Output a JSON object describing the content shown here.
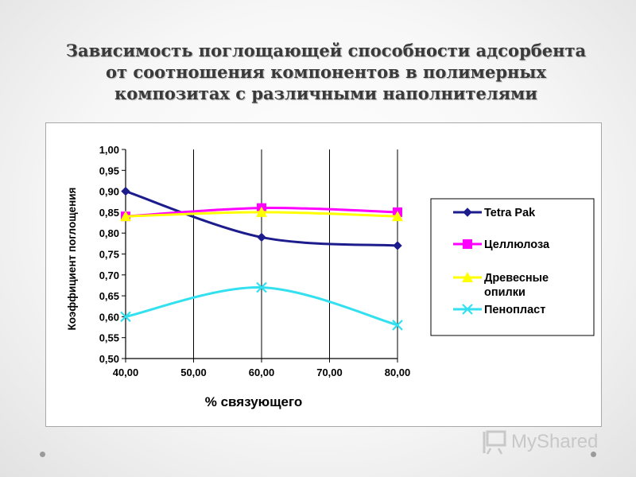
{
  "slide": {
    "title": "Зависимость поглощающей способности адсорбента\nот  соотношения компонентов в полимерных\nкомпозитах  с различными наполнителями",
    "watermark_text": "MyShared",
    "watermark_icon": "presentation-screen-icon"
  },
  "chart_data": {
    "type": "line",
    "title": "",
    "xlabel": "%  связующего",
    "ylabel": "Коэффициент поглощения",
    "x": [
      40,
      50,
      60,
      70,
      80
    ],
    "x_tick_labels": [
      "40,00",
      "50,00",
      "60,00",
      "70,00",
      "80,00"
    ],
    "xlim": [
      40,
      80
    ],
    "ylim": [
      0.5,
      1.0
    ],
    "y_ticks": [
      0.5,
      0.55,
      0.6,
      0.65,
      0.7,
      0.75,
      0.8,
      0.85,
      0.9,
      0.95,
      1.0
    ],
    "y_tick_labels": [
      "0,50",
      "0,55",
      "0,60",
      "0,65",
      "0,70",
      "0,75",
      "0,80",
      "0,85",
      "0,90",
      "0,95",
      "1,00"
    ],
    "grid": "vertical",
    "legend_position": "right",
    "series": [
      {
        "name": "Tetra Pak",
        "x": [
          40,
          60,
          80
        ],
        "values": [
          0.9,
          0.79,
          0.77
        ],
        "color": "#1c1c8c",
        "marker": "diamond"
      },
      {
        "name": "Целлюлоза",
        "x": [
          40,
          60,
          80
        ],
        "values": [
          0.84,
          0.86,
          0.85
        ],
        "color": "#ff00ff",
        "marker": "square"
      },
      {
        "name": "Древесные опилки",
        "x": [
          40,
          60,
          80
        ],
        "values": [
          0.84,
          0.85,
          0.84
        ],
        "color": "#ffff00",
        "marker": "triangle"
      },
      {
        "name": "Пенопласт",
        "x": [
          40,
          60,
          80
        ],
        "values": [
          0.6,
          0.67,
          0.58
        ],
        "color": "#33e0f0",
        "marker": "x"
      }
    ]
  }
}
